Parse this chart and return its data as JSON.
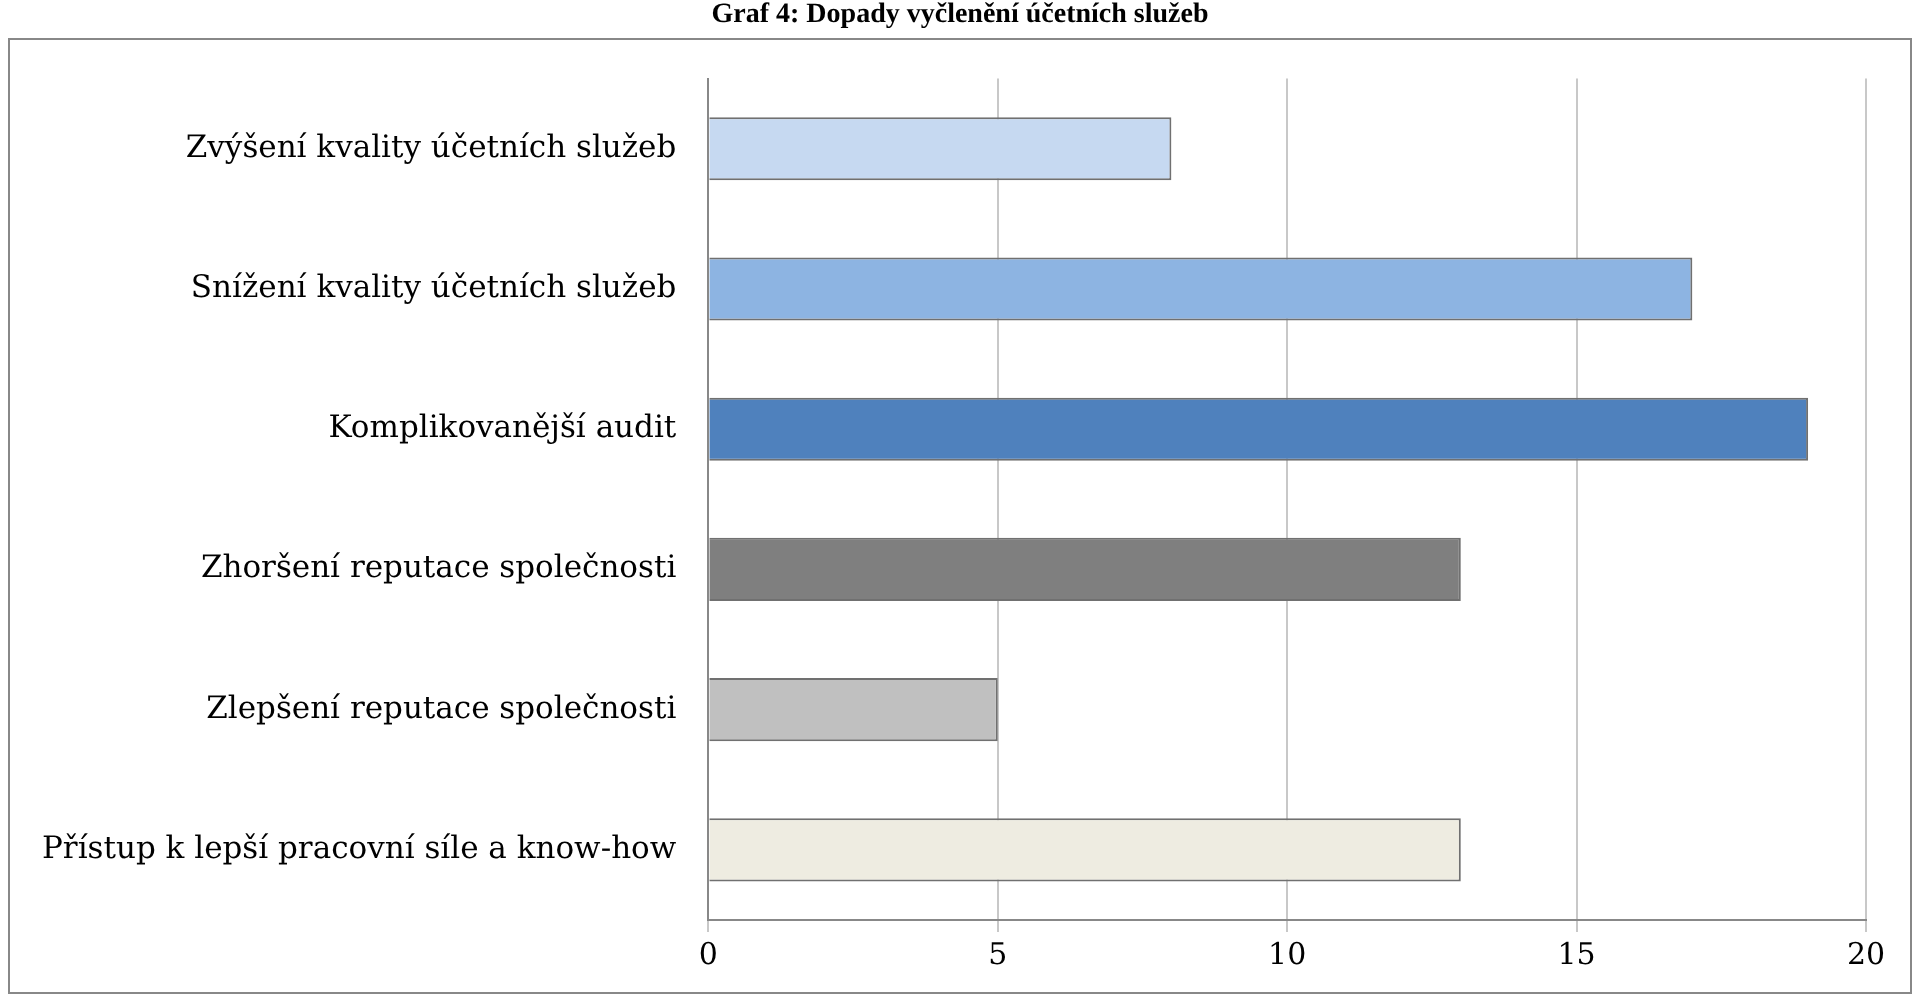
{
  "chart_data": {
    "type": "bar",
    "orientation": "horizontal",
    "title": "Graf 4: Dopady vyčlenění účetních služeb",
    "categories": [
      "Zvýšení kvality účetních služeb",
      "Snížení kvality účetních služeb",
      "Komplikovanější audit",
      "Zhoršení reputace společnosti",
      "Zlepšení reputace společnosti",
      "Přístup k lepší pracovní síle a know-how"
    ],
    "values": [
      8,
      17,
      19,
      13,
      5,
      13
    ],
    "colors": [
      "#c6d9f1",
      "#8db4e2",
      "#4f81bd",
      "#7f7f7f",
      "#c0c0c0",
      "#eeece1"
    ],
    "xlim": [
      0,
      20
    ],
    "xticks": [
      0,
      5,
      10,
      15,
      20
    ],
    "grid": "x",
    "legend": false
  }
}
